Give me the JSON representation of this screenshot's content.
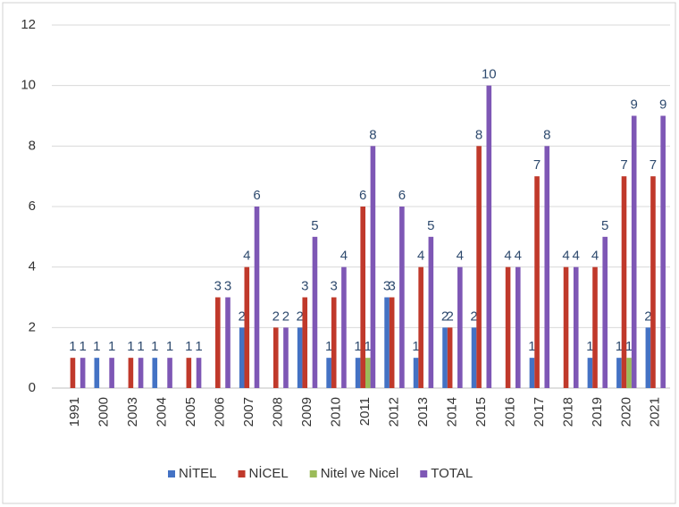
{
  "chart_data": {
    "type": "bar",
    "categories": [
      "1991",
      "2000",
      "2003",
      "2004",
      "2005",
      "2006",
      "2007",
      "2008",
      "2009",
      "2010",
      "2011",
      "2012",
      "2013",
      "2014",
      "2015",
      "2016",
      "2017",
      "2018",
      "2019",
      "2020",
      "2021"
    ],
    "series": [
      {
        "name": "NİTEL",
        "color": "#4472c4",
        "values": [
          null,
          1,
          null,
          1,
          null,
          null,
          2,
          null,
          2,
          1,
          1,
          3,
          1,
          2,
          2,
          null,
          1,
          null,
          1,
          1,
          2
        ]
      },
      {
        "name": "NİCEL",
        "color": "#c0392b",
        "values": [
          1,
          null,
          1,
          null,
          1,
          3,
          4,
          2,
          3,
          3,
          6,
          3,
          4,
          2,
          8,
          4,
          7,
          4,
          4,
          7,
          7
        ]
      },
      {
        "name": "Nitel ve Nicel",
        "color": "#9bbb59",
        "values": [
          null,
          null,
          null,
          null,
          null,
          null,
          null,
          null,
          null,
          null,
          1,
          null,
          null,
          null,
          null,
          null,
          null,
          null,
          null,
          1,
          null
        ]
      },
      {
        "name": "TOTAL",
        "color": "#7e57b5",
        "values": [
          1,
          1,
          1,
          1,
          1,
          3,
          6,
          2,
          5,
          4,
          8,
          6,
          5,
          4,
          10,
          4,
          8,
          4,
          5,
          9,
          9
        ]
      }
    ],
    "ylim": [
      0,
      12
    ],
    "yticks": [
      0,
      2,
      4,
      6,
      8,
      10,
      12
    ],
    "grid": true,
    "legend": "bottom"
  }
}
